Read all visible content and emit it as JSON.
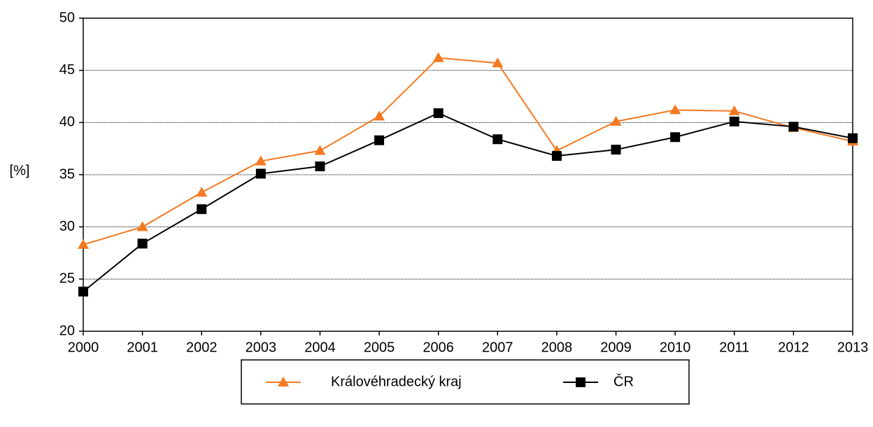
{
  "chart_data": {
    "type": "line",
    "y_label": "[%]",
    "categories": [
      "2000",
      "2001",
      "2002",
      "2003",
      "2004",
      "2005",
      "2006",
      "2007",
      "2008",
      "2009",
      "2010",
      "2011",
      "2012",
      "2013"
    ],
    "series": [
      {
        "name": "Královéhradecký kraj",
        "color": "#f47920",
        "marker": "triangle",
        "values": [
          28.3,
          30.0,
          33.3,
          36.3,
          37.3,
          40.6,
          46.2,
          45.7,
          37.3,
          40.1,
          41.2,
          41.1,
          39.5,
          38.2
        ]
      },
      {
        "name": "ČR",
        "color": "#000000",
        "marker": "square",
        "values": [
          23.8,
          28.4,
          31.7,
          35.1,
          35.8,
          38.3,
          40.9,
          38.4,
          36.8,
          37.4,
          38.6,
          40.1,
          39.6,
          38.5
        ]
      }
    ],
    "ylim": [
      20,
      50
    ],
    "yticks": [
      20,
      25,
      30,
      35,
      40,
      45,
      50
    ],
    "grid": true,
    "legend": "bottom"
  }
}
